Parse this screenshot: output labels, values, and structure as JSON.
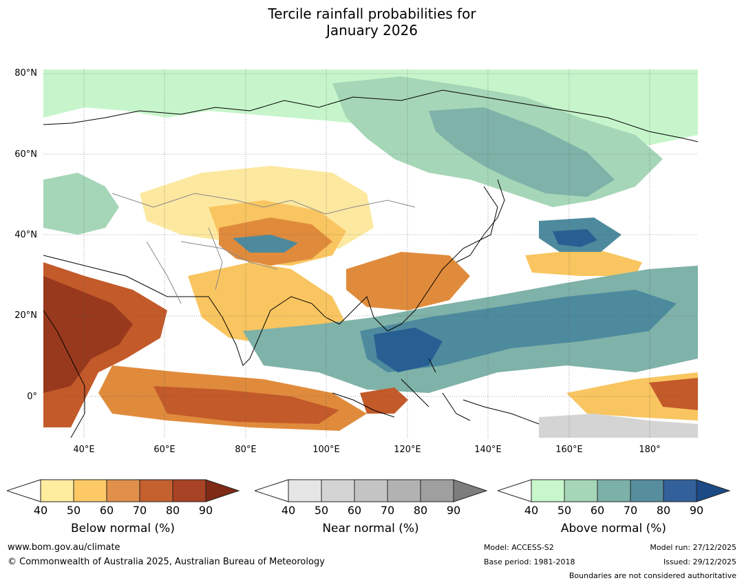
{
  "title": {
    "line1": "Tercile rainfall probabilities for",
    "line2": "January 2026"
  },
  "map": {
    "lat_labels": [
      "80°N",
      "60°N",
      "40°N",
      "20°N",
      "0°"
    ],
    "lon_labels": [
      "40°E",
      "60°E",
      "80°E",
      "100°E",
      "120°E",
      "140°E",
      "160°E",
      "180°"
    ],
    "colors": {
      "ocean_neutral": "#ffffff",
      "below_50": "#fde8a0",
      "below_60": "#f9c560",
      "below_70": "#e08b3c",
      "below_80": "#c35a2a",
      "below_90": "#98391d",
      "near_50": "#e5e5e5",
      "near_60": "#d4d4d4",
      "above_50": "#c7f5cb",
      "above_60": "#a5d6b7",
      "above_70": "#7fb2a8",
      "above_80": "#4e8a9e",
      "above_90": "#275f93",
      "coastline": "#000000",
      "borders": "#888888",
      "grid": "#555555"
    }
  },
  "colorbars": [
    {
      "title": "Below normal (%)",
      "ticks": [
        "40",
        "50",
        "60",
        "70",
        "80",
        "90"
      ],
      "colors": [
        "#ffffff",
        "#feec9f",
        "#fdc866",
        "#e0904a",
        "#c5602f",
        "#a84224",
        "#7f2a15"
      ]
    },
    {
      "title": "Near normal (%)",
      "ticks": [
        "40",
        "50",
        "60",
        "70",
        "80",
        "90"
      ],
      "colors": [
        "#ffffff",
        "#e6e6e6",
        "#d4d4d4",
        "#c4c4c4",
        "#b2b2b2",
        "#9f9f9f",
        "#7d7d7d"
      ]
    },
    {
      "title": "Above normal (%)",
      "ticks": [
        "40",
        "50",
        "60",
        "70",
        "80",
        "90"
      ],
      "colors": [
        "#ffffff",
        "#c9f7cc",
        "#a6d6b8",
        "#7cb1a7",
        "#578e9e",
        "#32609a",
        "#1b4a85"
      ]
    }
  ],
  "footer": {
    "website": "www.bom.gov.au/climate",
    "copyright": "© Commonwealth of Australia 2025, Australian Bureau of Meteorology",
    "model": "Model: ACCESS-S2",
    "base_period": "Base period: 1981-2018",
    "model_run": "Model run: 27/12/2025",
    "issued": "Issued: 29/12/2025",
    "boundaries_note": "Boundaries are not considered authoritative"
  }
}
